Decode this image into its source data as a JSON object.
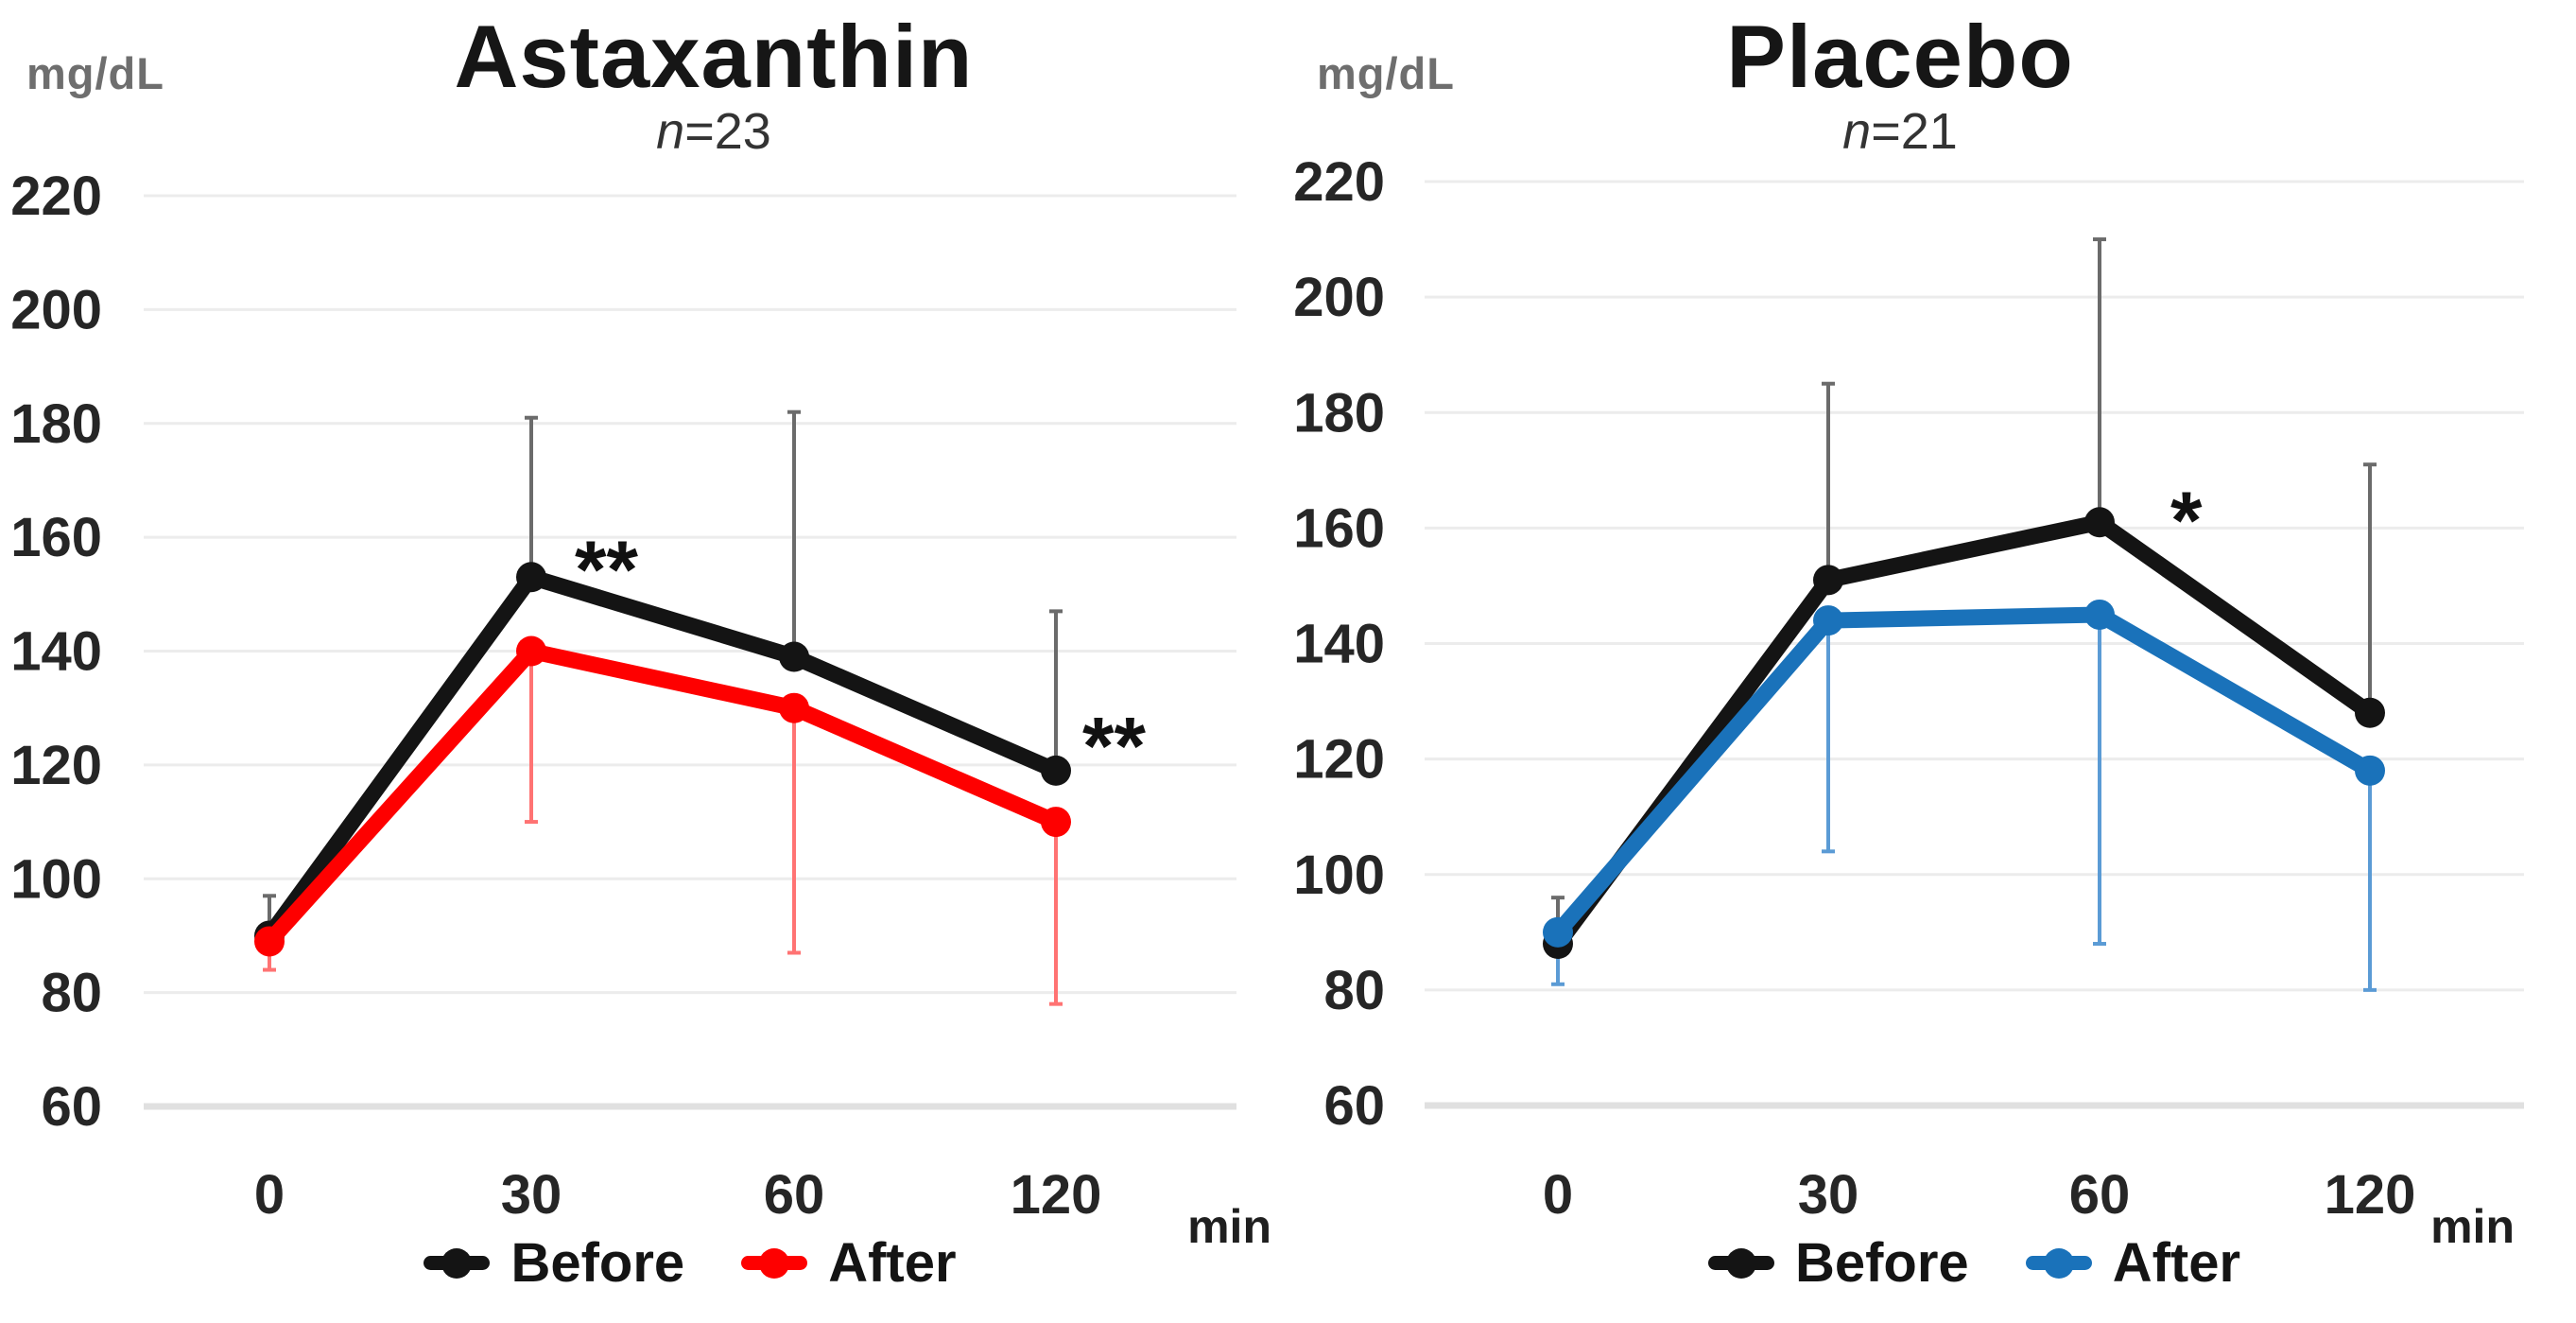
{
  "figure": {
    "background": "#ffffff"
  },
  "chart_data": [
    {
      "type": "line",
      "title": "Astaxanthin",
      "sample_size": {
        "prefix": "n",
        "rest": "=23"
      },
      "y_axis_unit": "mg/dL",
      "x_axis_unit": "min",
      "x": [
        0,
        30,
        60,
        120
      ],
      "x_tick_labels": [
        "0",
        "30",
        "60",
        "120"
      ],
      "y_ticks": [
        220,
        200,
        180,
        160,
        140,
        120,
        100,
        80,
        60
      ],
      "ylim": [
        60,
        220
      ],
      "grid": "horizontal",
      "legend_position": "bottom-center",
      "series": [
        {
          "name": "Before",
          "color": "#141414",
          "error_bar_color": "#6b6b6b",
          "error_bar_direction": "up",
          "values": [
            90,
            153,
            139,
            119
          ],
          "error_bar_tips": [
            97,
            181,
            182,
            147
          ]
        },
        {
          "name": "After",
          "color": "#fe0000",
          "error_bar_color": "#ff7373",
          "error_bar_direction": "down",
          "values": [
            89,
            140,
            130,
            110
          ],
          "error_bar_tips": [
            84,
            110,
            87,
            78
          ]
        }
      ],
      "annotations": [
        {
          "text": "**",
          "x": 30,
          "level": 158,
          "dx": 46
        },
        {
          "text": "**",
          "x": 120,
          "level": 127,
          "dx": 28
        }
      ]
    },
    {
      "type": "line",
      "title": "Placebo",
      "sample_size": {
        "prefix": "n",
        "rest": "=21"
      },
      "y_axis_unit": "mg/dL",
      "x_axis_unit": "min",
      "x": [
        0,
        30,
        60,
        120
      ],
      "x_tick_labels": [
        "0",
        "30",
        "60",
        "120"
      ],
      "y_ticks": [
        220,
        200,
        180,
        160,
        140,
        120,
        100,
        80,
        60
      ],
      "ylim": [
        60,
        220
      ],
      "grid": "horizontal",
      "legend_position": "bottom-center",
      "series": [
        {
          "name": "Before",
          "color": "#141414",
          "error_bar_color": "#6b6b6b",
          "error_bar_direction": "up",
          "values": [
            88,
            151,
            161,
            128
          ],
          "error_bar_tips": [
            96,
            185,
            210,
            171
          ]
        },
        {
          "name": "After",
          "color": "#1a72ba",
          "error_bar_color": "#5b9bd5",
          "error_bar_direction": "down",
          "values": [
            90,
            144,
            145,
            118
          ],
          "error_bar_tips": [
            81,
            104,
            88,
            80
          ]
        }
      ],
      "annotations": [
        {
          "text": "*",
          "x": 60,
          "level": 165,
          "dx": 75
        }
      ]
    }
  ]
}
